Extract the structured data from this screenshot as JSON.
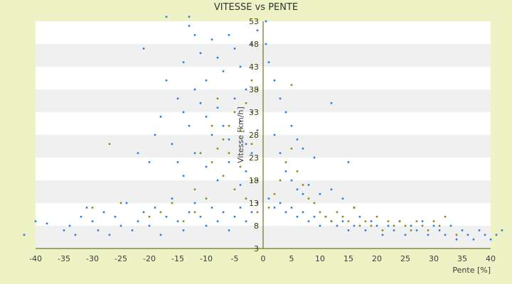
{
  "chart_data": {
    "type": "scatter",
    "title": "VITESSE vs PENTE",
    "xlabel": "Pente [%]",
    "ylabel": "Vitesse [km/h]",
    "xlim": [
      -40,
      40
    ],
    "ylim": [
      3,
      53
    ],
    "x_ticks": [
      "-40",
      "-35",
      "-30",
      "-25",
      "-20",
      "-15",
      "-10",
      "-5",
      "0",
      "5",
      "10",
      "15",
      "20",
      "25",
      "30",
      "35",
      "40"
    ],
    "y_ticks": [
      "3",
      "8",
      "13",
      "18",
      "23",
      "28",
      "33",
      "38",
      "43",
      "48",
      "53"
    ],
    "grid": "alternating horizontal bands",
    "colors": {
      "background": "#eef3c6",
      "plot_band_light": "#ffffff",
      "plot_band_dark": "#f0f0f0",
      "axis": "#555500",
      "series_primary": "#2f7fd6",
      "series_secondary": "#8c8c1c"
    },
    "series": [
      {
        "color": "#2f7fd6",
        "points": [
          [
            -42,
            6
          ],
          [
            -40,
            9
          ],
          [
            -38,
            8.5
          ],
          [
            -35,
            7
          ],
          [
            -34,
            8
          ],
          [
            -33,
            6
          ],
          [
            -32,
            10
          ],
          [
            -31,
            12
          ],
          [
            -30,
            9
          ],
          [
            -29,
            7
          ],
          [
            -28,
            11
          ],
          [
            -27,
            6
          ],
          [
            -26,
            10
          ],
          [
            -25,
            8
          ],
          [
            -24,
            13
          ],
          [
            -23,
            7
          ],
          [
            -22,
            9
          ],
          [
            -21,
            11
          ],
          [
            -20,
            8
          ],
          [
            -19,
            12
          ],
          [
            -18,
            6
          ],
          [
            -17,
            10
          ],
          [
            -16,
            14
          ],
          [
            -15,
            9
          ],
          [
            -14,
            7
          ],
          [
            -13,
            11
          ],
          [
            -12,
            13
          ],
          [
            -11,
            10
          ],
          [
            -10,
            8
          ],
          [
            -9,
            12
          ],
          [
            -8,
            9
          ],
          [
            -7,
            11
          ],
          [
            -6,
            7
          ],
          [
            -5,
            10
          ],
          [
            -4,
            12
          ],
          [
            -3,
            9
          ],
          [
            -2,
            11
          ],
          [
            -1,
            13
          ],
          [
            1,
            14
          ],
          [
            2,
            12
          ],
          [
            3,
            13
          ],
          [
            4,
            11
          ],
          [
            5,
            12
          ],
          [
            6,
            10
          ],
          [
            7,
            11
          ],
          [
            8,
            9
          ],
          [
            9,
            10
          ],
          [
            10,
            8
          ],
          [
            11,
            10
          ],
          [
            12,
            9
          ],
          [
            13,
            8
          ],
          [
            14,
            9
          ],
          [
            15,
            7
          ],
          [
            16,
            8
          ],
          [
            17,
            10
          ],
          [
            18,
            7
          ],
          [
            19,
            9
          ],
          [
            20,
            8
          ],
          [
            21,
            6
          ],
          [
            22,
            8
          ],
          [
            23,
            7
          ],
          [
            24,
            9
          ],
          [
            25,
            6
          ],
          [
            26,
            8
          ],
          [
            27,
            7
          ],
          [
            28,
            9
          ],
          [
            29,
            6
          ],
          [
            30,
            8
          ],
          [
            31,
            7
          ],
          [
            32,
            6
          ],
          [
            33,
            8
          ],
          [
            34,
            5
          ],
          [
            35,
            7
          ],
          [
            36,
            6
          ],
          [
            37,
            5
          ],
          [
            38,
            7
          ],
          [
            39,
            6
          ],
          [
            40,
            5
          ],
          [
            41,
            6
          ],
          [
            42,
            7
          ],
          [
            -14,
            44
          ],
          [
            -13,
            52
          ],
          [
            -12,
            50
          ],
          [
            -11,
            46
          ],
          [
            -10,
            40
          ],
          [
            -9,
            49
          ],
          [
            -8,
            45
          ],
          [
            -7,
            42
          ],
          [
            -6,
            50
          ],
          [
            -5,
            47
          ],
          [
            -4,
            43
          ],
          [
            -3,
            38
          ],
          [
            -2,
            48
          ],
          [
            -1,
            51
          ],
          [
            -15,
            36
          ],
          [
            -14,
            33
          ],
          [
            -13,
            30
          ],
          [
            -12,
            38
          ],
          [
            -11,
            35
          ],
          [
            -10,
            32
          ],
          [
            -9,
            28
          ],
          [
            -8,
            34
          ],
          [
            -7,
            30
          ],
          [
            -6,
            27
          ],
          [
            -5,
            36
          ],
          [
            -4,
            31
          ],
          [
            -3,
            26
          ],
          [
            -2,
            33
          ],
          [
            -1,
            29
          ],
          [
            -17,
            40
          ],
          [
            -18,
            32
          ],
          [
            -19,
            28
          ],
          [
            -16,
            26
          ],
          [
            -15,
            22
          ],
          [
            -14,
            19
          ],
          [
            -12,
            24
          ],
          [
            -10,
            21
          ],
          [
            -8,
            18
          ],
          [
            -6,
            22
          ],
          [
            -4,
            17
          ],
          [
            -3,
            20
          ],
          [
            -2,
            24
          ],
          [
            -1,
            18
          ],
          [
            -21,
            47
          ],
          [
            -17,
            54
          ],
          [
            -13,
            54
          ],
          [
            -20,
            22
          ],
          [
            -22,
            24
          ],
          [
            0.5,
            53
          ],
          [
            0.5,
            48
          ],
          [
            1,
            44
          ],
          [
            2,
            40
          ],
          [
            3,
            36
          ],
          [
            4,
            33
          ],
          [
            5,
            30
          ],
          [
            6,
            27
          ],
          [
            7,
            25
          ],
          [
            9,
            23
          ],
          [
            12,
            35
          ],
          [
            15,
            22
          ],
          [
            2,
            28
          ],
          [
            3,
            24
          ],
          [
            4,
            20
          ],
          [
            5,
            18
          ],
          [
            6,
            16
          ],
          [
            7,
            15
          ],
          [
            8,
            17
          ],
          [
            10,
            15
          ],
          [
            12,
            16
          ],
          [
            14,
            14
          ],
          [
            16,
            12
          ]
        ]
      },
      {
        "color": "#8c8c1c",
        "points": [
          [
            -27,
            26
          ],
          [
            -25,
            13
          ],
          [
            -30,
            12
          ],
          [
            -20,
            10
          ],
          [
            -12,
            16
          ],
          [
            -10,
            14
          ],
          [
            -9,
            22
          ],
          [
            -8,
            25
          ],
          [
            -7,
            19
          ],
          [
            -6,
            30
          ],
          [
            -5,
            33
          ],
          [
            -4,
            29
          ],
          [
            -3,
            35
          ],
          [
            -2,
            40
          ],
          [
            -1,
            38
          ],
          [
            -5,
            16
          ],
          [
            -4,
            21
          ],
          [
            -3,
            14
          ],
          [
            -2,
            18
          ],
          [
            -1,
            11
          ],
          [
            1,
            12
          ],
          [
            2,
            15
          ],
          [
            3,
            18
          ],
          [
            4,
            22
          ],
          [
            5,
            39
          ],
          [
            5,
            25
          ],
          [
            6,
            20
          ],
          [
            7,
            17
          ],
          [
            8,
            14
          ],
          [
            9,
            13
          ],
          [
            10,
            11
          ],
          [
            11,
            10
          ],
          [
            12,
            9
          ],
          [
            13,
            11
          ],
          [
            14,
            10
          ],
          [
            15,
            9
          ],
          [
            16,
            12
          ],
          [
            17,
            8
          ],
          [
            18,
            9
          ],
          [
            19,
            8
          ],
          [
            20,
            10
          ],
          [
            21,
            7
          ],
          [
            22,
            9
          ],
          [
            23,
            8
          ],
          [
            24,
            9
          ],
          [
            25,
            8
          ],
          [
            26,
            7
          ],
          [
            27,
            9
          ],
          [
            28,
            8
          ],
          [
            29,
            7
          ],
          [
            30,
            9
          ],
          [
            31,
            8
          ],
          [
            32,
            10
          ],
          [
            34,
            6
          ],
          [
            -18,
            11
          ],
          [
            -16,
            13
          ],
          [
            -14,
            9
          ],
          [
            -12,
            11
          ],
          [
            -11,
            24
          ],
          [
            -9,
            30
          ],
          [
            -7,
            27
          ],
          [
            -6,
            24
          ],
          [
            -8,
            36
          ],
          [
            -2,
            26
          ]
        ]
      }
    ]
  }
}
